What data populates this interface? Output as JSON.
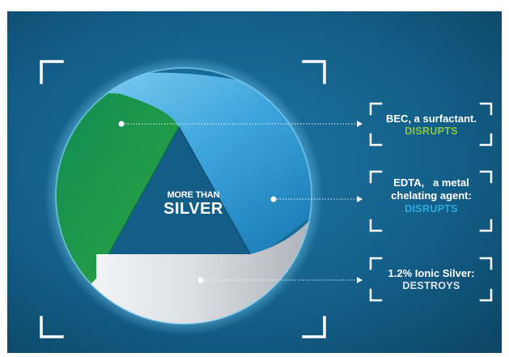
{
  "center": {
    "line1": "MORE THAN",
    "line2": "SILVER"
  },
  "callouts": [
    {
      "text": "BEC, a surfactant.",
      "status": "DISRUPTS",
      "status_color": "#8cc63f"
    },
    {
      "text_line1": "EDTA,   a metal",
      "text_line2": "chelating agent:",
      "status": "DISRUPTS",
      "status_color": "#29abe2"
    },
    {
      "text": "1.2% Ionic Silver:",
      "status": "DESTROYS",
      "status_color": "#dfe3e8"
    }
  ],
  "colors": {
    "background_dark": "#0f4e72",
    "background_light": "#1b6c96",
    "green_segment": "#1f9a48",
    "blue_segment": "#4fb6e6",
    "silver_segment": "#d9dcdf"
  }
}
